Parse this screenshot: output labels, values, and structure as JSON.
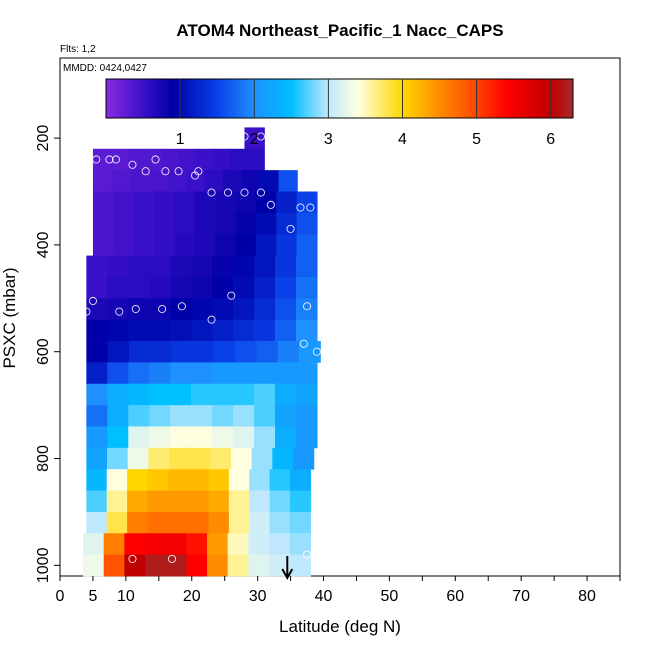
{
  "chart_data": {
    "type": "heatmap",
    "title": "ATOM4 Northeast_Pacific_1 Nacc_CAPS",
    "flights_label": "Flts: 1,2",
    "dates_label": "MMDD: 0424,0427",
    "xlabel": "Latitude (deg N)",
    "ylabel": "PSXC (mbar)",
    "xlim": [
      0,
      85
    ],
    "ylim": [
      1020,
      50
    ],
    "y_inverted": true,
    "grid": false,
    "x_ticks": [
      {
        "v": 0,
        "label": "0"
      },
      {
        "v": 5,
        "label": "5"
      },
      {
        "v": 10,
        "label": "10"
      },
      {
        "v": 20,
        "label": "20"
      },
      {
        "v": 30,
        "label": "30"
      },
      {
        "v": 40,
        "label": "40"
      },
      {
        "v": 50,
        "label": "50"
      },
      {
        "v": 60,
        "label": "60"
      },
      {
        "v": 70,
        "label": "70"
      },
      {
        "v": 80,
        "label": "80"
      }
    ],
    "x_minor_ticks": [
      0,
      5,
      10,
      15,
      20,
      25,
      30,
      35,
      40,
      45,
      50,
      55,
      60,
      65,
      70,
      75,
      80,
      85
    ],
    "y_ticks": [
      {
        "v": 200,
        "label": "200"
      },
      {
        "v": 400,
        "label": "400"
      },
      {
        "v": 600,
        "label": "600"
      },
      {
        "v": 800,
        "label": "800"
      },
      {
        "v": 1000,
        "label": "1000"
      }
    ],
    "colorbar": {
      "min": 0,
      "max": 6.3,
      "ticks": [
        {
          "v": 1,
          "label": "1"
        },
        {
          "v": 2,
          "label": "2"
        },
        {
          "v": 3,
          "label": "3"
        },
        {
          "v": 4,
          "label": "4"
        },
        {
          "v": 5,
          "label": "5"
        },
        {
          "v": 6,
          "label": "6"
        }
      ],
      "stops": [
        {
          "v": 0.0,
          "c": "#8a2be2"
        },
        {
          "v": 0.5,
          "c": "#3a10c8"
        },
        {
          "v": 0.9,
          "c": "#0000a8"
        },
        {
          "v": 1.5,
          "c": "#0a40e8"
        },
        {
          "v": 2.0,
          "c": "#1e90ff"
        },
        {
          "v": 2.5,
          "c": "#00bfff"
        },
        {
          "v": 3.0,
          "c": "#bfe8ff"
        },
        {
          "v": 3.4,
          "c": "#ffffe0"
        },
        {
          "v": 4.0,
          "c": "#ffd700"
        },
        {
          "v": 4.5,
          "c": "#ff8c00"
        },
        {
          "v": 5.0,
          "c": "#ff4500"
        },
        {
          "v": 5.4,
          "c": "#ff0000"
        },
        {
          "v": 6.0,
          "c": "#c00000"
        },
        {
          "v": 6.3,
          "c": "#a52a2a"
        }
      ]
    },
    "arrow_latitude": 34.5,
    "bins": [
      {
        "p": [
          180,
          220
        ],
        "lat": [
          28,
          31
        ],
        "v": [
          0.5
        ]
      },
      {
        "p": [
          220,
          260
        ],
        "lat": [
          5,
          31
        ],
        "v": [
          0.3,
          0.3,
          0.35,
          0.35,
          0.4,
          0.45,
          0.5,
          0.55,
          0.6,
          0.6
        ]
      },
      {
        "p": [
          260,
          300
        ],
        "lat": [
          5,
          36
        ],
        "v": [
          0.3,
          0.35,
          0.4,
          0.4,
          0.45,
          0.5,
          0.6,
          0.7,
          0.8,
          1.0,
          1.6
        ]
      },
      {
        "p": [
          300,
          340
        ],
        "lat": [
          5,
          39
        ],
        "v": [
          0.4,
          0.45,
          0.5,
          0.55,
          0.6,
          0.7,
          0.75,
          0.8,
          0.9,
          1.2,
          1.5
        ]
      },
      {
        "p": [
          340,
          380
        ],
        "lat": [
          5,
          39
        ],
        "v": [
          0.4,
          0.45,
          0.5,
          0.55,
          0.6,
          0.7,
          0.75,
          0.85,
          1.0,
          1.3,
          1.6
        ]
      },
      {
        "p": [
          380,
          420
        ],
        "lat": [
          5,
          39
        ],
        "v": [
          0.4,
          0.45,
          0.5,
          0.55,
          0.65,
          0.7,
          0.8,
          0.9,
          1.1,
          1.4,
          1.7
        ]
      },
      {
        "p": [
          420,
          460
        ],
        "lat": [
          4,
          39
        ],
        "v": [
          0.5,
          0.55,
          0.6,
          0.6,
          0.7,
          0.75,
          0.85,
          0.95,
          1.1,
          1.4,
          1.7
        ]
      },
      {
        "p": [
          460,
          500
        ],
        "lat": [
          4,
          39
        ],
        "v": [
          0.5,
          0.6,
          0.6,
          0.65,
          0.75,
          0.8,
          0.9,
          1.0,
          1.2,
          1.5,
          1.8
        ]
      },
      {
        "p": [
          500,
          540
        ],
        "lat": [
          4,
          39
        ],
        "v": [
          0.7,
          0.75,
          0.8,
          0.8,
          0.9,
          0.95,
          1.0,
          1.1,
          1.3,
          1.6,
          1.9
        ]
      },
      {
        "p": [
          540,
          580
        ],
        "lat": [
          4,
          39
        ],
        "v": [
          0.9,
          0.95,
          1.0,
          1.0,
          1.05,
          1.1,
          1.2,
          1.3,
          1.4,
          1.7,
          2.0
        ]
      },
      {
        "p": [
          580,
          620
        ],
        "lat": [
          4,
          39.5
        ],
        "v": [
          0.9,
          1.1,
          1.3,
          1.3,
          1.4,
          1.4,
          1.5,
          1.6,
          1.7,
          1.9,
          2.1
        ]
      },
      {
        "p": [
          620,
          660
        ],
        "lat": [
          4,
          39
        ],
        "v": [
          1.2,
          1.6,
          1.8,
          1.9,
          2.0,
          2.0,
          2.1,
          2.1,
          2.1,
          2.1,
          2.1
        ]
      },
      {
        "p": [
          660,
          700
        ],
        "lat": [
          4,
          39
        ],
        "v": [
          2.0,
          2.3,
          2.4,
          2.5,
          2.5,
          2.6,
          2.6,
          2.6,
          2.7,
          2.3,
          2.2
        ]
      },
      {
        "p": [
          700,
          740
        ],
        "lat": [
          4,
          39
        ],
        "v": [
          1.8,
          2.3,
          2.7,
          2.8,
          2.9,
          2.9,
          2.8,
          2.9,
          2.7,
          2.2,
          2.1
        ]
      },
      {
        "p": [
          740,
          780
        ],
        "lat": [
          4,
          39
        ],
        "v": [
          2.1,
          2.5,
          3.2,
          3.3,
          3.4,
          3.4,
          3.3,
          3.2,
          2.9,
          2.3,
          2.1
        ]
      },
      {
        "p": [
          780,
          820
        ],
        "lat": [
          4,
          38.5
        ],
        "v": [
          2.2,
          2.8,
          3.3,
          3.7,
          3.8,
          3.8,
          3.7,
          3.4,
          2.9,
          2.4,
          2.1
        ]
      },
      {
        "p": [
          820,
          860
        ],
        "lat": [
          4,
          38
        ],
        "v": [
          2.4,
          3.4,
          4.0,
          4.1,
          4.2,
          4.2,
          4.1,
          3.4,
          2.9,
          2.6,
          2.3
        ]
      },
      {
        "p": [
          860,
          900
        ],
        "lat": [
          4,
          38
        ],
        "v": [
          2.7,
          3.6,
          4.3,
          4.4,
          4.4,
          4.4,
          4.3,
          3.6,
          3.0,
          2.8,
          2.6
        ]
      },
      {
        "p": [
          900,
          940
        ],
        "lat": [
          4,
          38
        ],
        "v": [
          3.0,
          3.8,
          4.6,
          4.7,
          4.7,
          4.7,
          4.5,
          3.6,
          3.1,
          2.9,
          2.8
        ]
      },
      {
        "p": [
          940,
          980
        ],
        "lat": [
          3.5,
          38
        ],
        "v": [
          3.2,
          4.6,
          5.4,
          5.5,
          5.5,
          5.3,
          4.4,
          3.5,
          3.1,
          3.0,
          2.9
        ]
      },
      {
        "p": [
          980,
          1020
        ],
        "lat": [
          3.5,
          38
        ],
        "v": [
          3.3,
          4.9,
          6.0,
          6.2,
          6.2,
          5.4,
          4.5,
          3.6,
          3.2,
          3.1,
          3.0
        ]
      }
    ],
    "points": [
      [
        28,
        197
      ],
      [
        30.5,
        197
      ],
      [
        5.5,
        240
      ],
      [
        7.5,
        240
      ],
      [
        8.5,
        240
      ],
      [
        11,
        250
      ],
      [
        13,
        262
      ],
      [
        14.5,
        240
      ],
      [
        16,
        262
      ],
      [
        18,
        262
      ],
      [
        20.5,
        270
      ],
      [
        21,
        262
      ],
      [
        23,
        302
      ],
      [
        25.5,
        302
      ],
      [
        28,
        302
      ],
      [
        30.5,
        302
      ],
      [
        32,
        325
      ],
      [
        35,
        370
      ],
      [
        36.5,
        330
      ],
      [
        38,
        330
      ],
      [
        4,
        525
      ],
      [
        5,
        505
      ],
      [
        9,
        525
      ],
      [
        11.5,
        520
      ],
      [
        15.5,
        520
      ],
      [
        18.5,
        515
      ],
      [
        23,
        540
      ],
      [
        26,
        495
      ],
      [
        37.5,
        515
      ],
      [
        37,
        585
      ],
      [
        39,
        600
      ],
      [
        11,
        988
      ],
      [
        17,
        988
      ],
      [
        37.5,
        980
      ]
    ]
  }
}
